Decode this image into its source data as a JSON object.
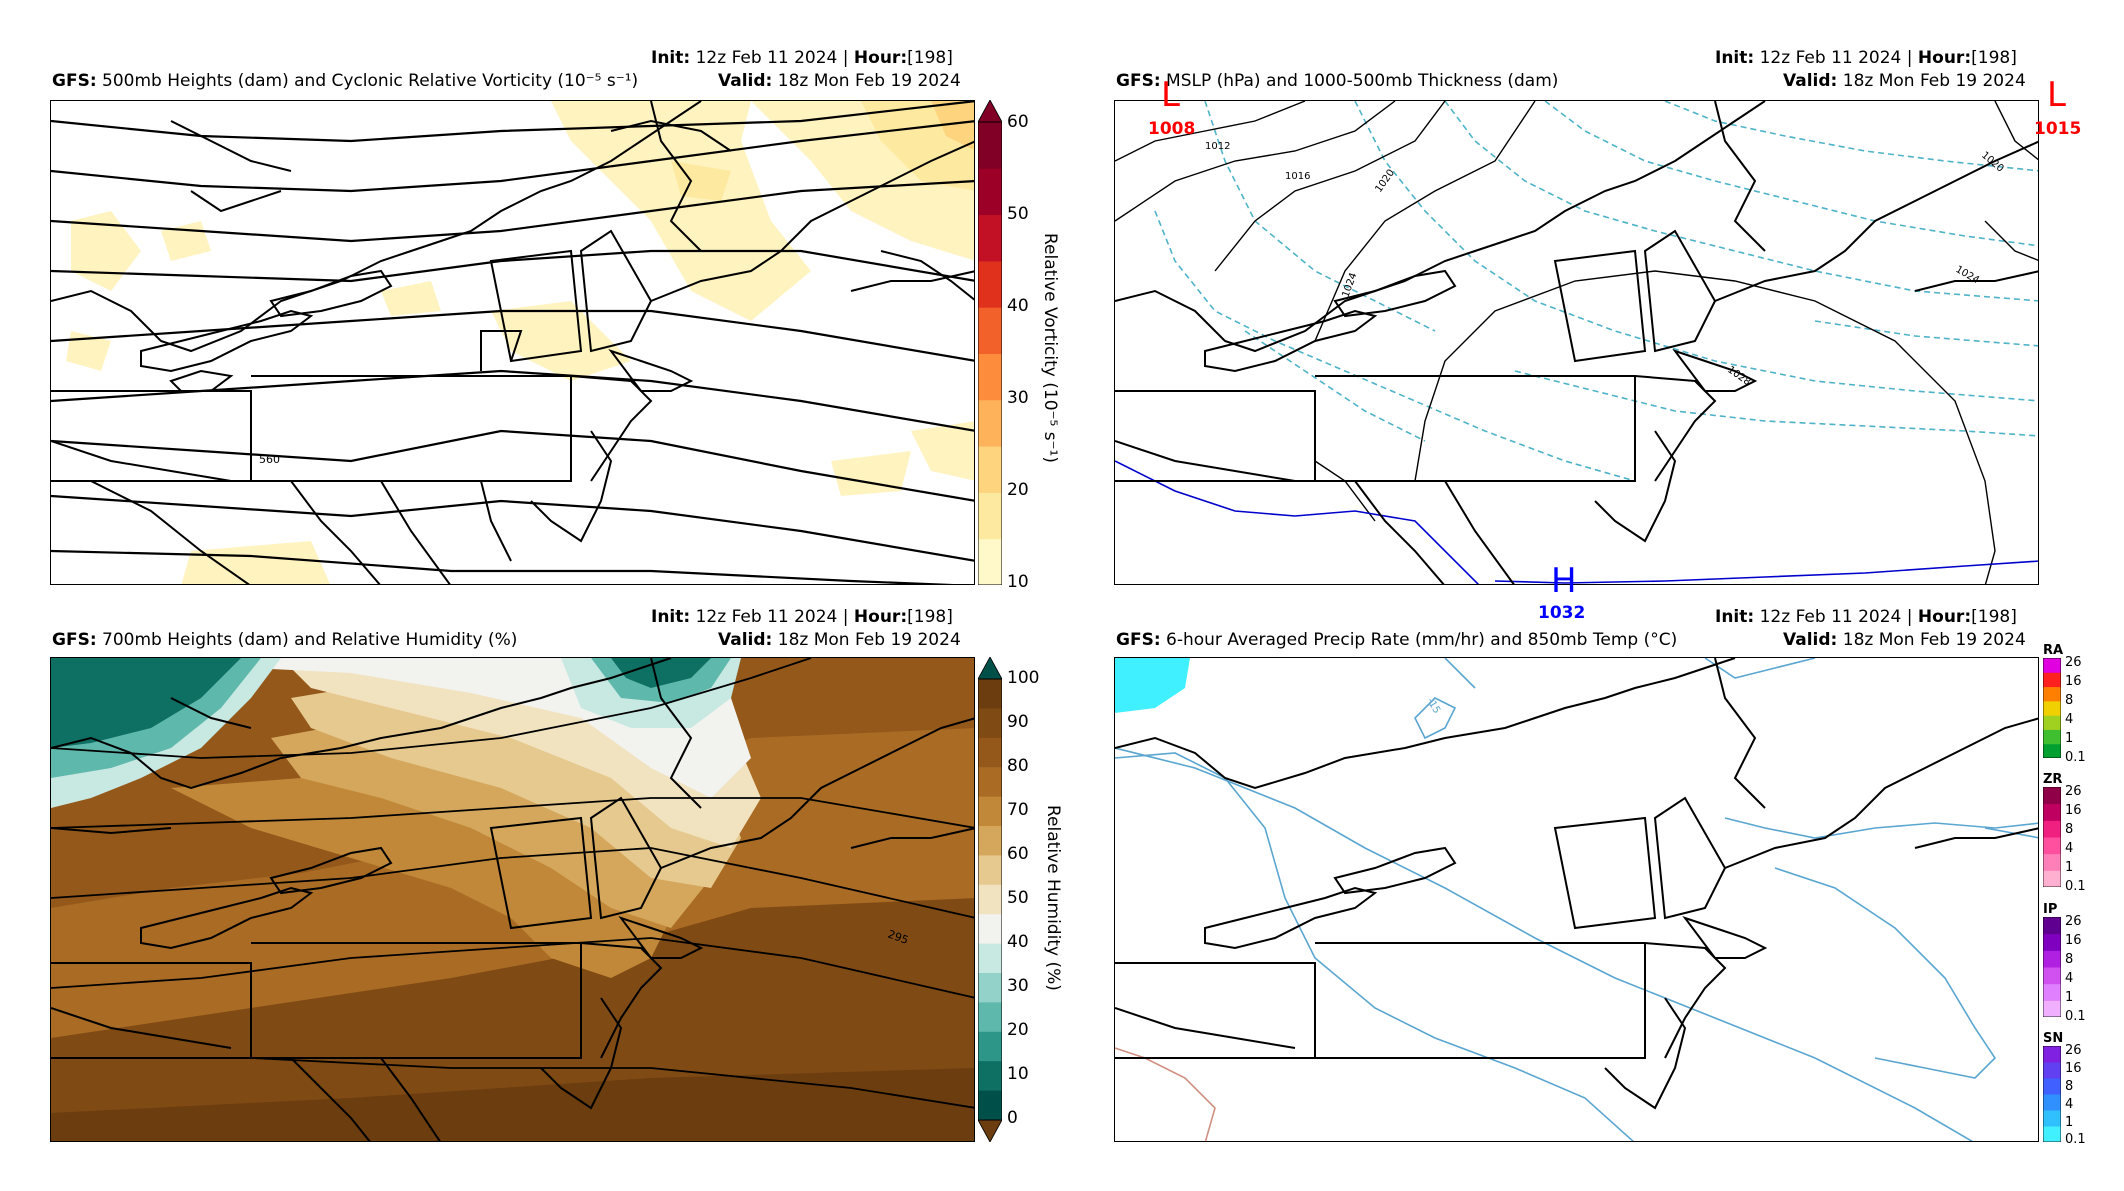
{
  "panels": [
    {
      "model": "GFS",
      "title": "500mb Heights (dam) and Cyclonic Relative Vorticity (10⁻⁵ s⁻¹)",
      "init_label": "Init",
      "init_value": "12z Feb 11 2024",
      "hour_label": "Hour",
      "hour_value": "[198]",
      "valid_label": "Valid",
      "valid_value": "18z Mon Feb 19 2024",
      "contour_labels": [
        "560"
      ],
      "colorbar": {
        "label": "Relative Vorticity (10⁻⁵ s⁻¹)",
        "ticks": [
          "60",
          "50",
          "40",
          "30",
          "20",
          "10"
        ],
        "colors": [
          "#fff8c8",
          "#fee9a0",
          "#fed47e",
          "#feb35a",
          "#fd8d3c",
          "#f26129",
          "#e0311d",
          "#c21124",
          "#9c0026",
          "#800026"
        ]
      }
    },
    {
      "model": "GFS",
      "title": "MSLP (hPa) and 1000-500mb Thickness (dam)",
      "init_label": "Init",
      "init_value": "12z Feb 11 2024",
      "hour_label": "Hour",
      "hour_value": "[198]",
      "valid_label": "Valid",
      "valid_value": "18z Mon Feb 19 2024",
      "isobar_labels": [
        "1012",
        "1016",
        "1020",
        "1024",
        "1028",
        "1020",
        "1024"
      ],
      "centers": [
        {
          "letter": "L",
          "value": "1008",
          "color": "#ff0000"
        },
        {
          "letter": "L",
          "value": "1015",
          "color": "#ff0000"
        },
        {
          "letter": "H",
          "value": "1032",
          "color": "#0000ff"
        }
      ]
    },
    {
      "model": "GFS",
      "title": "700mb Heights (dam) and Relative Humidity (%)",
      "init_label": "Init",
      "init_value": "12z Feb 11 2024",
      "hour_label": "Hour",
      "hour_value": "[198]",
      "valid_label": "Valid",
      "valid_value": "18z Mon Feb 19 2024",
      "contour_labels": [
        "295"
      ],
      "colorbar": {
        "label": "Relative Humidity (%)",
        "ticks": [
          "100",
          "90",
          "80",
          "70",
          "60",
          "50",
          "40",
          "30",
          "20",
          "10",
          "0"
        ],
        "colors": [
          "#6b3d0f",
          "#7f4a14",
          "#94581a",
          "#aa6b24",
          "#c08838",
          "#d4a75c",
          "#e6c98e",
          "#f1e3c0",
          "#f2f2ef",
          "#c8e8e2",
          "#93d2c8",
          "#5fb8ac",
          "#2e9688",
          "#0e6f63",
          "#00504a"
        ]
      }
    },
    {
      "model": "GFS",
      "title": "6-hour Averaged Precip Rate (mm/hr) and 850mb Temp (°C)",
      "init_label": "Init",
      "init_value": "12z Feb 11 2024",
      "hour_label": "Hour",
      "hour_value": "[198]",
      "valid_label": "Valid",
      "valid_value": "18z Mon Feb 19 2024",
      "contour_labels": [
        "-15"
      ],
      "precip_types": [
        {
          "name": "RA",
          "ticks": [
            "26",
            "16",
            "8",
            "4",
            "1",
            "0.1"
          ],
          "colors": [
            "#00a030",
            "#40c030",
            "#a0d020",
            "#f0d000",
            "#ff8000",
            "#ff2020",
            "#e000e0"
          ]
        },
        {
          "name": "ZR",
          "ticks": [
            "26",
            "16",
            "8",
            "4",
            "1",
            "0.1"
          ],
          "colors": [
            "#ffb0d0",
            "#ff80b8",
            "#ff50a0",
            "#f02080",
            "#c00060",
            "#900048"
          ]
        },
        {
          "name": "IP",
          "ticks": [
            "26",
            "16",
            "8",
            "4",
            "1",
            "0.1"
          ],
          "colors": [
            "#f0b0ff",
            "#e080ff",
            "#d050f0",
            "#b020e0",
            "#8000c0",
            "#600090"
          ]
        },
        {
          "name": "SN",
          "ticks": [
            "26",
            "16",
            "8",
            "4",
            "1",
            "0.1"
          ],
          "colors": [
            "#40f0ff",
            "#30c0ff",
            "#3090ff",
            "#4060ff",
            "#6040f0",
            "#8020e0"
          ]
        }
      ]
    }
  ]
}
